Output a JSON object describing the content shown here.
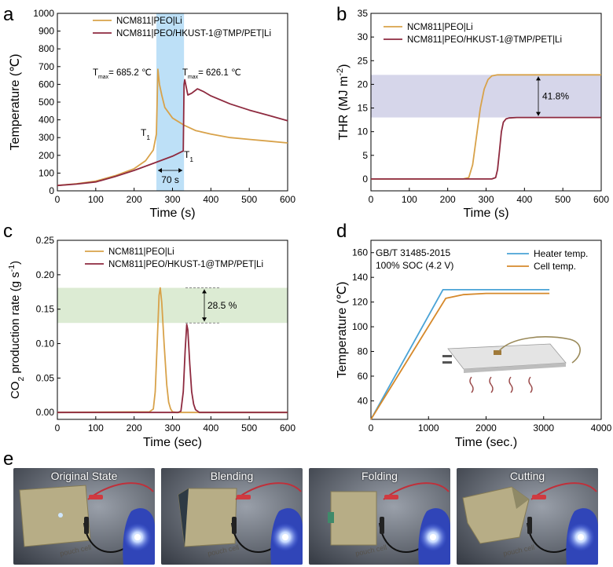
{
  "colors": {
    "orange": "#d8a24a",
    "maroon": "#8e2a3f",
    "blue": "#4aa3d6",
    "cell": "#d6892b",
    "band_b": "#d6d6ea",
    "band_c": "#dcebd3",
    "band_a": "#bde0f7"
  },
  "chart_data": [
    {
      "panel": "a",
      "type": "line",
      "xlabel": "Time (s)",
      "ylabel": "Temperature (℃)",
      "xlim": [
        0,
        600
      ],
      "ylim": [
        0,
        1000
      ],
      "xticks": [
        "0",
        "100",
        "200",
        "300",
        "400",
        "500",
        "600"
      ],
      "yticks": [
        "0",
        "100",
        "200",
        "300",
        "400",
        "500",
        "600",
        "700",
        "800",
        "900",
        "1000"
      ],
      "legend": "top-right",
      "series": [
        {
          "name": "NCM811|PEO|Li",
          "color": "#d8a24a",
          "x": [
            0,
            50,
            100,
            150,
            200,
            230,
            250,
            258,
            262,
            266,
            272,
            280,
            300,
            330,
            360,
            400,
            450,
            500,
            550,
            600
          ],
          "y": [
            30,
            40,
            55,
            85,
            125,
            170,
            230,
            320,
            685,
            600,
            540,
            470,
            410,
            370,
            340,
            320,
            300,
            290,
            280,
            270
          ]
        },
        {
          "name": "NCM811|PEO/HKUST-1@TMP/PET|Li",
          "color": "#8e2a3f",
          "x": [
            0,
            50,
            100,
            150,
            200,
            250,
            300,
            328,
            330,
            332,
            340,
            350,
            365,
            380,
            400,
            450,
            500,
            550,
            600
          ],
          "y": [
            30,
            38,
            50,
            80,
            115,
            155,
            195,
            225,
            600,
            626,
            540,
            550,
            575,
            560,
            535,
            490,
            455,
            425,
            395
          ]
        }
      ],
      "annotations": {
        "tmax_orange": {
          "label": "T",
          "sub": "max",
          "value": "= 685.2 ℃"
        },
        "tmax_maroon": {
          "label": "T",
          "sub": "max",
          "value": "= 626.1 ℃"
        },
        "t1_orange": {
          "label": "T",
          "sub": "1"
        },
        "t1_maroon": {
          "label": "T",
          "sub": "1"
        },
        "gap": "70 s",
        "band_x": [
          258,
          330
        ]
      }
    },
    {
      "panel": "b",
      "type": "line",
      "xlabel": "Time (s)",
      "ylabel": "THR (MJ m⁻²)",
      "xlim": [
        0,
        600
      ],
      "ylim": [
        -2.5,
        35
      ],
      "xticks": [
        "0",
        "100",
        "200",
        "300",
        "400",
        "500",
        "600"
      ],
      "yticks": [
        "0",
        "5",
        "10",
        "15",
        "20",
        "25",
        "30",
        "35"
      ],
      "legend": "top-right",
      "series": [
        {
          "name": "NCM811|PEO|Li",
          "color": "#d8a24a",
          "x": [
            0,
            240,
            255,
            265,
            275,
            285,
            295,
            305,
            315,
            330,
            600
          ],
          "y": [
            0,
            0,
            0.3,
            3,
            9,
            15,
            19,
            21,
            21.8,
            22,
            22
          ]
        },
        {
          "name": "NCM811|PEO/HKUST-1@TMP/PET|Li",
          "color": "#8e2a3f",
          "x": [
            0,
            315,
            325,
            330,
            335,
            340,
            345,
            352,
            360,
            380,
            600
          ],
          "y": [
            0,
            0,
            0.3,
            2,
            6,
            10,
            12,
            12.7,
            12.9,
            13,
            13
          ]
        }
      ],
      "annotations": {
        "band_y": [
          13,
          22
        ],
        "reduction": "41.8%"
      }
    },
    {
      "panel": "c",
      "type": "line",
      "xlabel": "Time (sec)",
      "ylabel": "CO₂ production rate (g s⁻¹)",
      "xlim": [
        0,
        600
      ],
      "ylim": [
        -0.01,
        0.25
      ],
      "xticks": [
        "0",
        "100",
        "200",
        "300",
        "400",
        "500",
        "600"
      ],
      "yticks": [
        "0.00",
        "0.05",
        "0.10",
        "0.15",
        "0.20",
        "0.25"
      ],
      "legend": "top-right",
      "series": [
        {
          "name": "NCM811|PEO|Li",
          "color": "#d8a24a",
          "x": [
            0,
            240,
            250,
            255,
            260,
            265,
            268,
            272,
            278,
            285,
            290,
            295,
            300,
            310,
            600
          ],
          "y": [
            0,
            0.001,
            0.005,
            0.03,
            0.1,
            0.17,
            0.181,
            0.16,
            0.1,
            0.04,
            0.015,
            0.005,
            0.001,
            0,
            0
          ]
        },
        {
          "name": "NCM811|PEO/HKUST-1@TMP/PET|Li",
          "color": "#8e2a3f",
          "x": [
            0,
            315,
            322,
            328,
            333,
            337,
            340,
            345,
            350,
            355,
            360,
            370,
            600
          ],
          "y": [
            0,
            0,
            0.002,
            0.03,
            0.09,
            0.128,
            0.12,
            0.07,
            0.03,
            0.012,
            0.004,
            0,
            0
          ]
        }
      ],
      "annotations": {
        "band_y": [
          0.13,
          0.181
        ],
        "reduction": "28.5 %"
      }
    },
    {
      "panel": "d",
      "type": "line",
      "xlabel": "Time (sec.)",
      "ylabel": "Temperature (℃)",
      "xlim": [
        0,
        4000
      ],
      "ylim": [
        25,
        170
      ],
      "xticks": [
        "0",
        "1000",
        "2000",
        "3000",
        "4000"
      ],
      "yticks": [
        "40",
        "60",
        "80",
        "100",
        "120",
        "140",
        "160"
      ],
      "legend": "top-right",
      "note": [
        "GB/T 31485-2015",
        "100% SOC (4.2 V)"
      ],
      "series": [
        {
          "name": "Heater temp.",
          "color": "#4aa3d6",
          "x": [
            0,
            1250,
            3100
          ],
          "y": [
            25,
            130,
            130
          ]
        },
        {
          "name": "Cell temp.",
          "color": "#d6892b",
          "x": [
            0,
            1300,
            1600,
            2000,
            3100
          ],
          "y": [
            25,
            123,
            126,
            127,
            127
          ]
        }
      ]
    }
  ],
  "panel_labels": [
    "a",
    "b",
    "c",
    "d",
    "e"
  ],
  "photos": [
    {
      "caption": "Original State"
    },
    {
      "caption": "Blending"
    },
    {
      "caption": "Folding"
    },
    {
      "caption": "Cutting"
    }
  ],
  "photo_marks": {
    "pouch": "pouch cell"
  }
}
